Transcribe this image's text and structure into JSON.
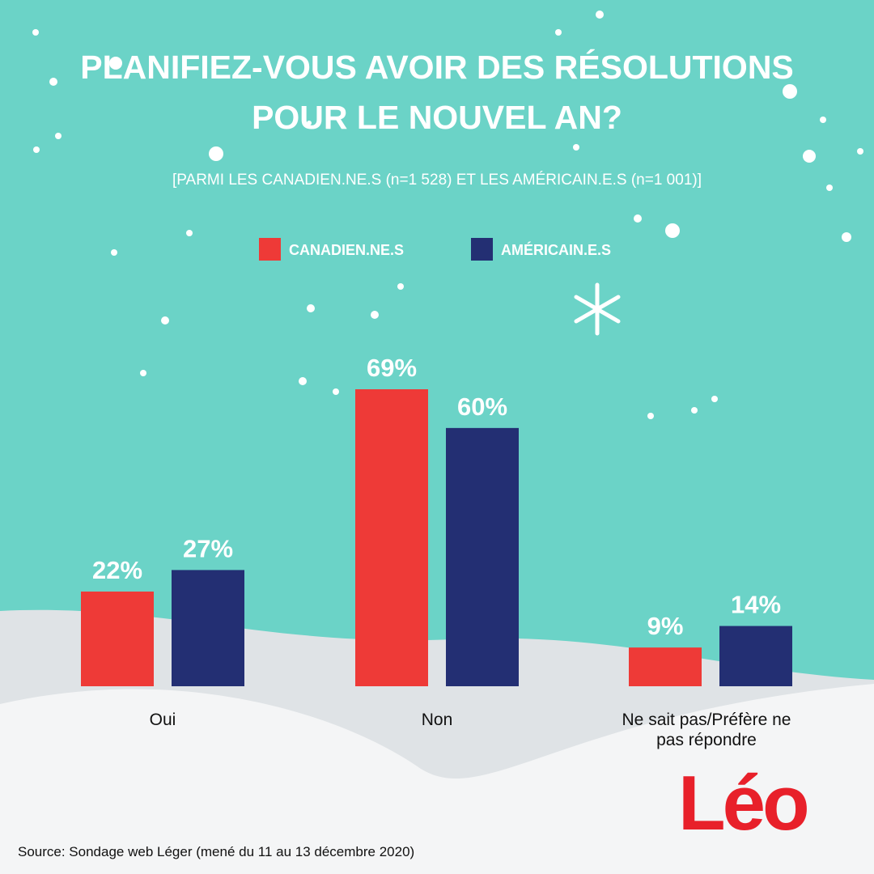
{
  "chart_data": {
    "type": "bar",
    "title": "PLANIFIEZ-VOUS AVOIR DES RÉSOLUTIONS POUR LE NOUVEL AN?",
    "subtitle": "[PARMI LES CANADIEN.NE.S (n=1 528) ET LES AMÉRICAIN.E.S (n=1 001)]",
    "categories": [
      "Oui",
      "Non",
      "Ne sait pas/Préfère ne pas répondre"
    ],
    "series": [
      {
        "name": "CANADIEN.NE.S",
        "color": "#ee3a37",
        "values": [
          22,
          69,
          9
        ],
        "value_labels": [
          "22%",
          "69%",
          "9%"
        ]
      },
      {
        "name": "AMÉRICAIN.E.S",
        "color": "#232f73",
        "values": [
          27,
          60,
          14
        ],
        "value_labels": [
          "27%",
          "60%",
          "14%"
        ]
      }
    ],
    "source": "Source: Sondage web Léger (mené du 11 au 13 décembre 2020)",
    "logo": "Léo"
  }
}
